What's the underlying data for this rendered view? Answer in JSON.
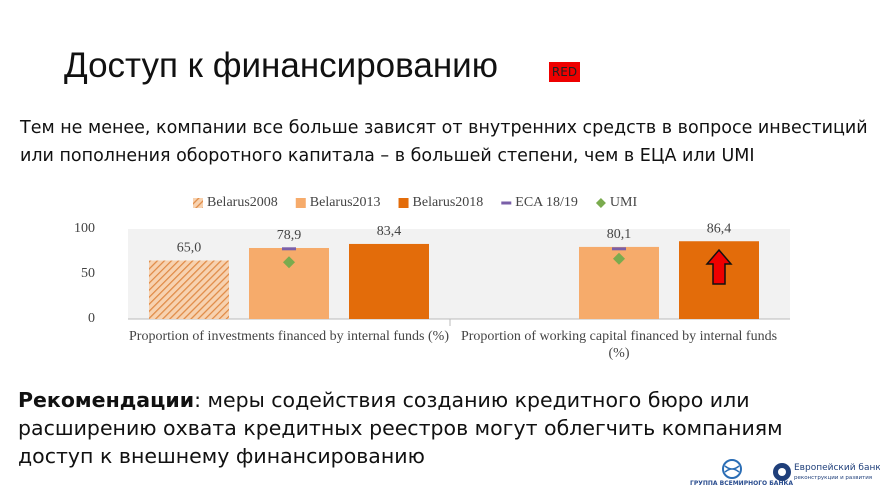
{
  "title": "Доступ к финансированию",
  "badge": "RED",
  "intro": [
    "Тем не менее, компании все больше зависят от внутренних средств в вопросе инвестиций",
    "или пополнения оборотного капитала – в большей степени, чем в ЕЦА или UMI"
  ],
  "chart_data": {
    "type": "bar",
    "categories": [
      "Proportion of investments financed by internal funds (%)",
      "Proportion of working capital financed by internal funds (%)"
    ],
    "series": [
      {
        "name": "Belarus2008",
        "color": "#e59c5f",
        "hatch": true,
        "values": [
          65.0,
          null
        ],
        "value_labels": [
          "65,0",
          null
        ]
      },
      {
        "name": "Belarus2013",
        "color": "#f6ab6b",
        "values": [
          78.9,
          80.1
        ],
        "value_labels": [
          "78,9",
          "80,1"
        ]
      },
      {
        "name": "Belarus2018",
        "color": "#e36c0a",
        "values": [
          83.4,
          86.4
        ],
        "value_labels": [
          "83,4",
          "86,4"
        ]
      },
      {
        "name": "ECA 18/19",
        "color": "#7a5fa8",
        "marker": "dash",
        "values": [
          78,
          78
        ]
      },
      {
        "name": "UMI",
        "color": "#7aab4e",
        "marker": "diamond",
        "values": [
          63,
          67
        ]
      }
    ],
    "ylim": [
      0,
      100
    ],
    "yticks": [
      0,
      50,
      100
    ],
    "grid": false,
    "legend": "top"
  },
  "recommendation": {
    "lead": "Рекомендации",
    "lines": [
      ": меры содействия созданию кредитного бюро или",
      "расширению охвата кредитных реестров могут облегчить компаниям",
      "доступ к внешнему финансированию"
    ]
  },
  "logos": {
    "wb": "ГРУППА ВСЕМИРНОГО БАНКА",
    "ebrd": "Европейский банк",
    "ebrd_sub": "реконструкции и развития"
  }
}
